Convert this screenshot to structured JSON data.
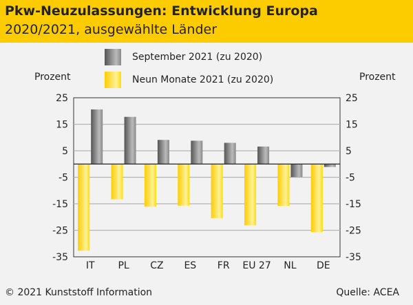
{
  "header": {
    "title": "Pkw-Neuzulassungen: Entwicklung Europa",
    "subtitle": "2020/2021, ausgewählte Länder"
  },
  "footer": {
    "copyright": "© 2021 Kunststoff Information",
    "source": "Quelle: ACEA"
  },
  "colors": {
    "header": "#fdcc00",
    "gray_series": "#8a8a8a",
    "yellow_series": "#fdd000"
  },
  "chart_data": {
    "type": "bar",
    "title": "Pkw-Neuzulassungen: Entwicklung Europa",
    "ylabel_left": "Prozent",
    "ylabel_right": "Prozent",
    "ylim": [
      -35,
      25
    ],
    "yticks": [
      25,
      15,
      5,
      -5,
      -15,
      -25,
      -35
    ],
    "grid": true,
    "legend_position": "top",
    "categories": [
      "IT",
      "PL",
      "CZ",
      "ES",
      "FR",
      "EU 27",
      "NL",
      "DE"
    ],
    "series": [
      {
        "name": "Neun Monate 2021 (zu 2020)",
        "color": "#fdd000",
        "values": [
          -32.7,
          -13.3,
          -16.1,
          -15.7,
          -20.4,
          -23.1,
          -15.8,
          -25.7
        ]
      },
      {
        "name": "September 2021 (zu 2020)",
        "color": "#8a8a8a",
        "values": [
          20.6,
          17.8,
          9.1,
          8.8,
          8.0,
          6.6,
          -4.9,
          -1.1
        ]
      }
    ]
  }
}
